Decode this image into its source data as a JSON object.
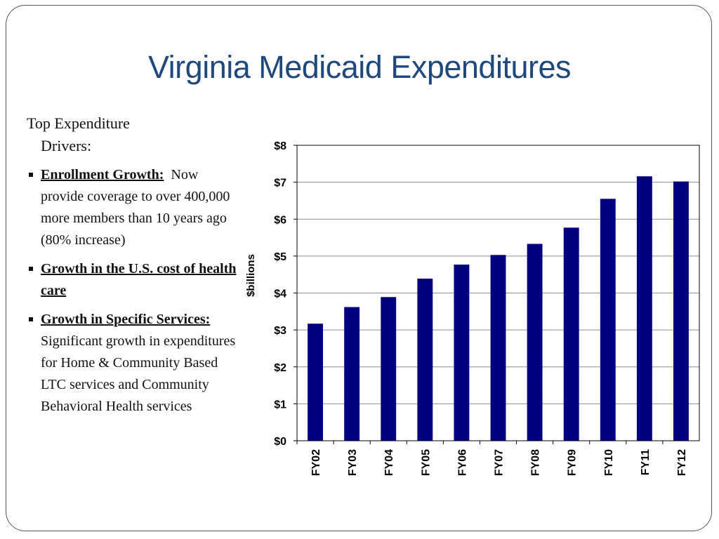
{
  "slide": {
    "title": "Virginia Medicaid Expenditures"
  },
  "left_panel": {
    "heading_line1": "Top Expenditure",
    "heading_line2": "Drivers:",
    "bullets": [
      {
        "bold": "Enrollment Growth:",
        "text": "Now provide coverage to over 400,000 more members than 10 years ago (80% increase)"
      },
      {
        "bold": "Growth in the U.S. cost of health care",
        "text": ""
      },
      {
        "bold": "Growth in Specific Services:",
        "text": "Significant growth in expenditures for Home & Community Based LTC services and Community Behavioral Health services"
      }
    ]
  },
  "chart_data": {
    "type": "bar",
    "categories": [
      "FY02",
      "FY03",
      "FY04",
      "FY05",
      "FY06",
      "FY07",
      "FY08",
      "FY09",
      "FY10",
      "FY11",
      "FY12"
    ],
    "values": [
      3.17,
      3.62,
      3.89,
      4.39,
      4.77,
      5.03,
      5.33,
      5.77,
      6.55,
      7.16,
      7.02
    ],
    "ylabel": "$billions",
    "ylim": [
      0,
      8
    ],
    "yticks": [
      "$0",
      "$1",
      "$2",
      "$3",
      "$4",
      "$5",
      "$6",
      "$7",
      "$8"
    ],
    "grid": true,
    "bar_color": "#000080"
  }
}
